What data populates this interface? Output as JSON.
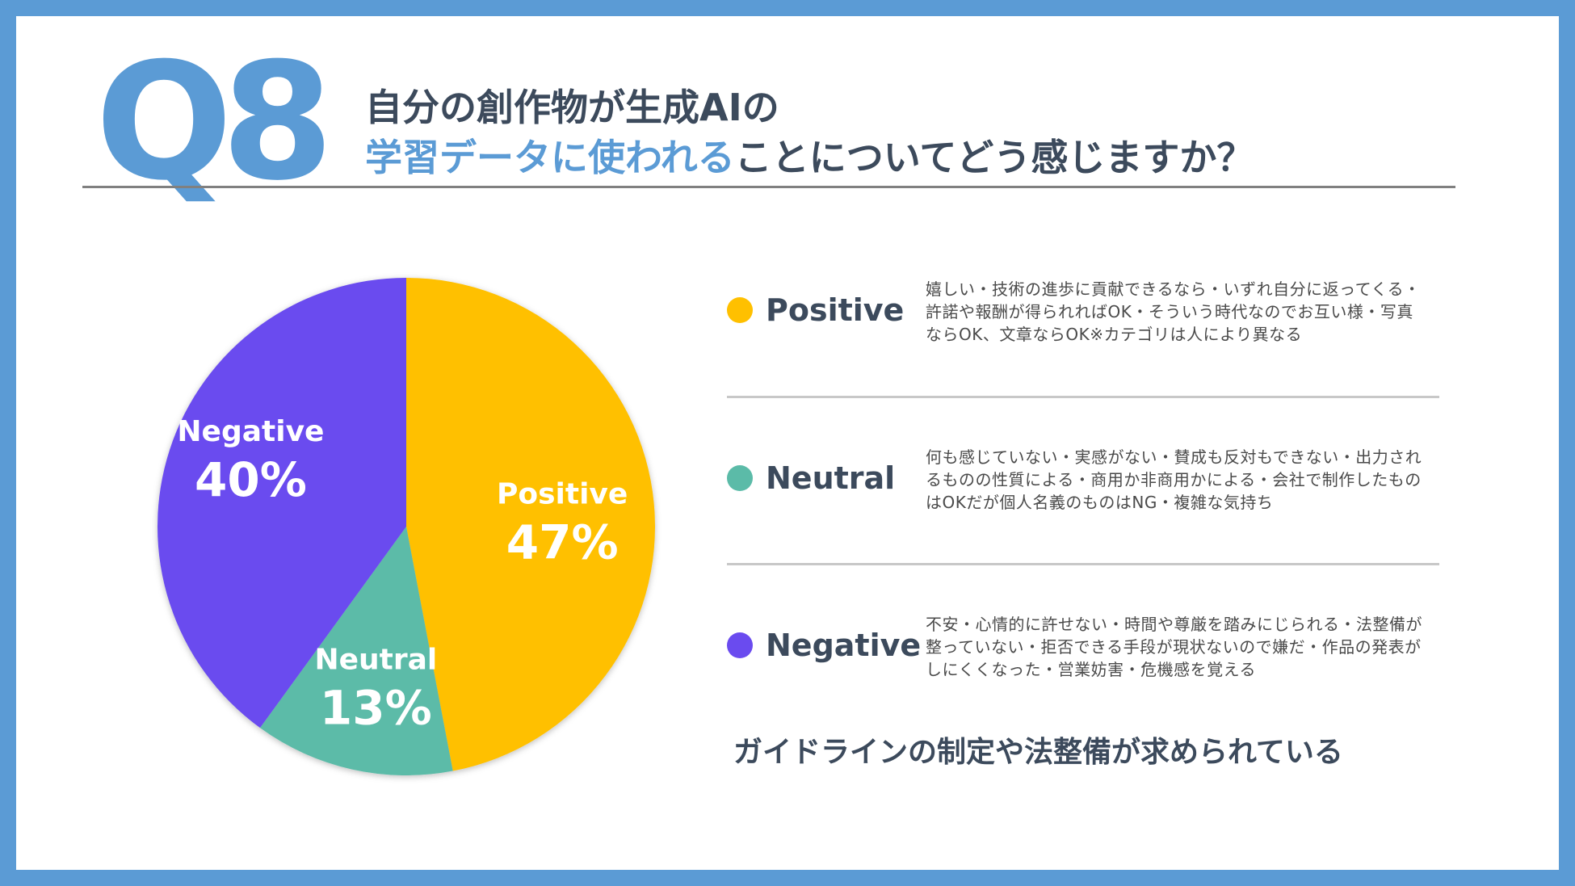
{
  "header": {
    "q_label": "Q8",
    "title_line1": "自分の創作物が生成AIの",
    "title_line2_highlight": "学習データに使われる",
    "title_line2_rest": "ことについてどう感じますか？"
  },
  "colors": {
    "accent": "#5b9bd5",
    "positive": "#ffc000",
    "neutral": "#5bbba8",
    "negative": "#6a4bef",
    "text": "#3c4a5c"
  },
  "chart_data": {
    "type": "pie",
    "slices": [
      {
        "name": "Positive",
        "value": 47,
        "label": "47%",
        "color": "#ffc000"
      },
      {
        "name": "Neutral",
        "value": 13,
        "label": "13%",
        "color": "#5bbba8"
      },
      {
        "name": "Negative",
        "value": 40,
        "label": "40%",
        "color": "#6a4bef"
      }
    ],
    "start_angle": "12 o'clock",
    "direction": "clockwise"
  },
  "legend": [
    {
      "name": "Positive",
      "color": "#ffc000",
      "description": "嬉しい・技術の進歩に貢献できるなら・いずれ自分に返ってくる・許諾や報酬が得られればOK・そういう時代なのでお互い様・写真ならOK、文章ならOK※カテゴリは人により異なる"
    },
    {
      "name": "Neutral",
      "color": "#5bbba8",
      "description": "何も感じていない・実感がない・賛成も反対もできない・出力されるものの性質による・商用か非商用かによる・会社で制作したものはOKだが個人名義のものはNG・複雑な気持ち"
    },
    {
      "name": "Negative",
      "color": "#6a4bef",
      "description": "不安・心情的に許せない・時間や尊厳を踏みにじられる・法整備が整っていない・拒否できる手段が現状ないので嫌だ・作品の発表がしにくくなった・営業妨害・危機感を覚える"
    }
  ],
  "conclusion": "ガイドラインの制定や法整備が求められている"
}
